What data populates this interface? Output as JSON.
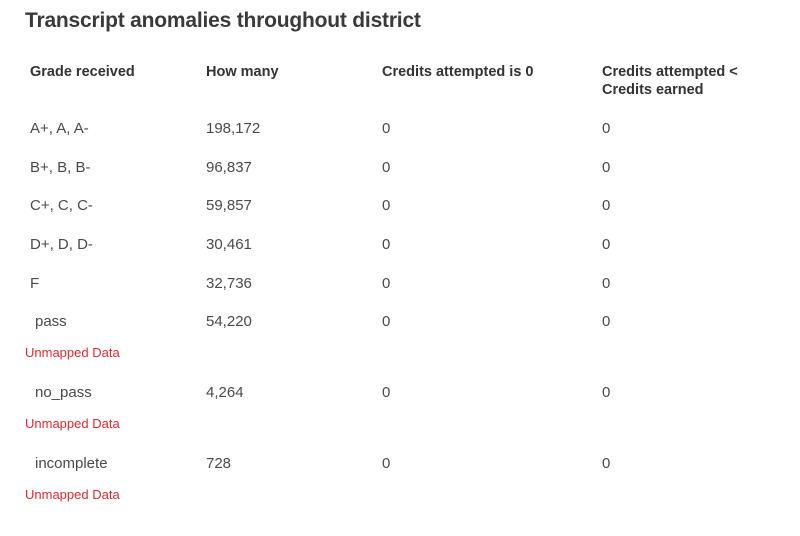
{
  "title": "Transcript anomalies throughout district",
  "table": {
    "headers": [
      "Grade received",
      "How many",
      "Credits attempted is 0",
      "Credits attempted < Credits earned"
    ],
    "rows": [
      {
        "grade": "A+, A, A-",
        "count": "198,172",
        "attempted_zero": "0",
        "attempted_lt_earned": "0"
      },
      {
        "grade": "B+, B, B-",
        "count": "96,837",
        "attempted_zero": "0",
        "attempted_lt_earned": "0"
      },
      {
        "grade": "C+, C, C-",
        "count": "59,857",
        "attempted_zero": "0",
        "attempted_lt_earned": "0"
      },
      {
        "grade": "D+, D, D-",
        "count": "30,461",
        "attempted_zero": "0",
        "attempted_lt_earned": "0"
      },
      {
        "grade": "F",
        "count": "32,736",
        "attempted_zero": "0",
        "attempted_lt_earned": "0"
      },
      {
        "grade": "pass",
        "count": "54,220",
        "attempted_zero": "0",
        "attempted_lt_earned": "0",
        "note": "Unmapped Data"
      },
      {
        "grade": "no_pass",
        "count": "4,264",
        "attempted_zero": "0",
        "attempted_lt_earned": "0",
        "note": "Unmapped Data"
      },
      {
        "grade": "incomplete",
        "count": "728",
        "attempted_zero": "0",
        "attempted_lt_earned": "0",
        "note": "Unmapped Data"
      }
    ]
  },
  "colors": {
    "unmapped_note": "#e8262e",
    "text": "#4a4a4a",
    "header": "#333333"
  }
}
